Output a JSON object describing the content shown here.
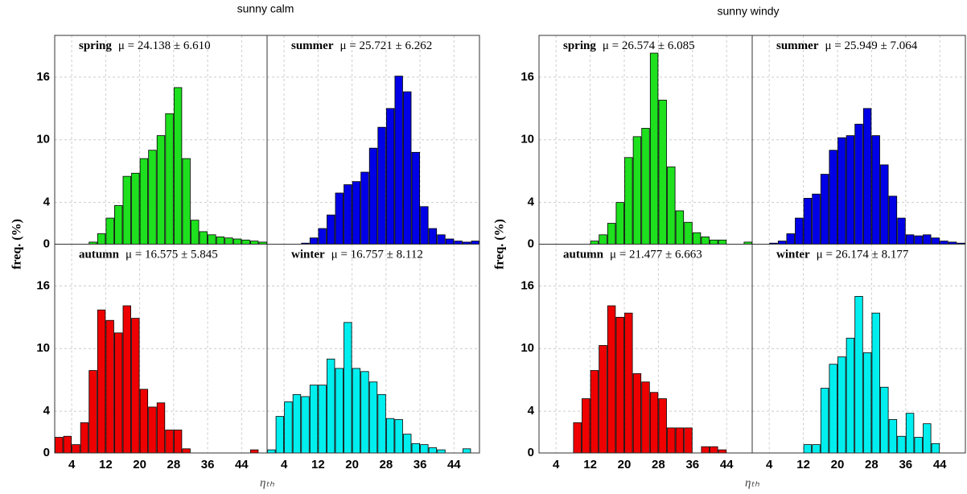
{
  "chart_data": [
    {
      "type": "histogram",
      "title": "sunny calm",
      "x_label": "ηₜₕ",
      "y_label": "freq.  (%)",
      "xlim": [
        0,
        50
      ],
      "xticks": [
        4,
        12,
        20,
        28,
        36,
        44
      ],
      "ylim": [
        0,
        20
      ],
      "yticks": [
        0,
        4,
        10,
        16
      ],
      "grid": true,
      "bins": [
        0,
        2,
        4,
        6,
        8,
        10,
        12,
        14,
        16,
        18,
        20,
        22,
        24,
        26,
        28,
        30,
        32,
        34,
        36,
        38,
        40,
        42,
        44,
        46,
        48,
        50
      ],
      "series": [
        {
          "name": "spring",
          "stat": "μ =  24.138 ± 6.610",
          "color": "#1ee01e",
          "values": [
            0,
            0,
            0,
            0,
            0.2,
            1,
            2.5,
            3.7,
            6.5,
            6.8,
            8.2,
            9,
            10.4,
            12.5,
            15,
            8.2,
            2.3,
            1.2,
            0.9,
            0.7,
            0.6,
            0.5,
            0.4,
            0.3,
            0.2
          ]
        },
        {
          "name": "summer",
          "stat": "μ =  25.721 ± 6.262",
          "color": "#0000e6",
          "values": [
            0,
            0,
            0,
            0,
            0.1,
            0.6,
            1.5,
            2.8,
            4.9,
            5.7,
            6,
            6.9,
            9.2,
            11.2,
            13,
            16.1,
            14.6,
            8.8,
            3.6,
            1.5,
            0.9,
            0.5,
            0.3,
            0.2,
            0.3
          ]
        },
        {
          "name": "autumn",
          "stat": "μ =  16.575 ± 5.845",
          "color": "#ee0000",
          "values": [
            1.5,
            1.6,
            0.8,
            2.9,
            7.9,
            13.7,
            12.7,
            11.5,
            14.1,
            12.9,
            6.1,
            4.4,
            4.8,
            2.2,
            2.2,
            0.4,
            0,
            0,
            0,
            0,
            0,
            0,
            0,
            0.3,
            0
          ]
        },
        {
          "name": "winter",
          "stat": "μ =  16.757 ± 8.112",
          "color": "#00eeee",
          "values": [
            0.3,
            3.5,
            4.9,
            5.6,
            5.4,
            6.5,
            6.5,
            9,
            8.1,
            12.5,
            8.1,
            7.8,
            6.8,
            5.6,
            3.3,
            3.2,
            1.8,
            0.9,
            0.8,
            0.5,
            0.3,
            0,
            0,
            0.4,
            0
          ]
        }
      ]
    },
    {
      "type": "histogram",
      "title": "sunny windy",
      "x_label": "ηₜₕ",
      "y_label": "freq.  (%)",
      "xlim": [
        0,
        50
      ],
      "xticks": [
        4,
        12,
        20,
        28,
        36,
        44
      ],
      "ylim": [
        0,
        20
      ],
      "yticks": [
        0,
        4,
        10,
        16
      ],
      "grid": true,
      "bins": [
        0,
        2,
        4,
        6,
        8,
        10,
        12,
        14,
        16,
        18,
        20,
        22,
        24,
        26,
        28,
        30,
        32,
        34,
        36,
        38,
        40,
        42,
        44,
        46,
        48,
        50
      ],
      "series": [
        {
          "name": "spring",
          "stat": "μ =  26.574 ± 6.085",
          "color": "#1ee01e",
          "values": [
            0,
            0,
            0,
            0,
            0,
            0,
            0.3,
            0.9,
            2,
            4,
            8.3,
            10.3,
            11.1,
            18.3,
            13.8,
            7.4,
            3.2,
            2.1,
            1.1,
            0.7,
            0.4,
            0.4,
            0,
            0,
            0.2
          ]
        },
        {
          "name": "summer",
          "stat": "μ =  25.949 ± 7.064",
          "color": "#0000e6",
          "values": [
            0,
            0,
            0.1,
            0.3,
            1,
            2.5,
            4.4,
            4.8,
            6.7,
            9,
            10.2,
            10.4,
            11.5,
            13,
            10.4,
            7.6,
            4.6,
            2.5,
            0.9,
            0.8,
            0.9,
            0.6,
            0.3,
            0.2,
            0.1
          ]
        },
        {
          "name": "autumn",
          "stat": "μ =  21.477 ± 6.663",
          "color": "#ee0000",
          "values": [
            0,
            0,
            0,
            0,
            2.9,
            5.2,
            7.9,
            10.3,
            14.1,
            13,
            13.4,
            7.6,
            6.8,
            5.8,
            5.2,
            2.4,
            2.4,
            2.4,
            0,
            0.6,
            0.6,
            0.3,
            0,
            0,
            0
          ]
        },
        {
          "name": "winter",
          "stat": "μ =  26.174 ± 8.177",
          "color": "#00eeee",
          "values": [
            0,
            0,
            0,
            0,
            0,
            0,
            0.8,
            0.8,
            6.2,
            8.5,
            9.2,
            11,
            15,
            9.6,
            13.4,
            6.3,
            3.2,
            1.6,
            3.8,
            1.5,
            2.8,
            0.9,
            0,
            0,
            0
          ]
        }
      ]
    }
  ]
}
